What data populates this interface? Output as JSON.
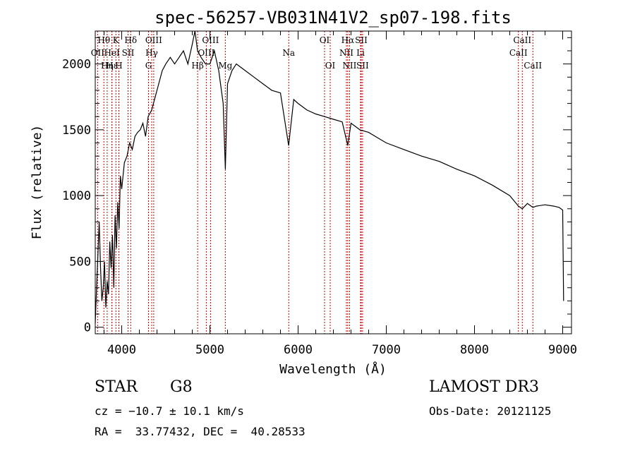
{
  "chart_data": {
    "type": "line",
    "title": "spec-56257-VB031N41V2_sp07-198.fits",
    "xlabel": "Wavelength (Å)",
    "ylabel": "Flux (relative)",
    "xlim": [
      3700,
      9100
    ],
    "ylim": [
      -50,
      2250
    ],
    "xticks": [
      4000,
      5000,
      6000,
      7000,
      8000,
      9000
    ],
    "yticks": [
      0,
      500,
      1000,
      1500,
      2000
    ],
    "tick_labels_x": [
      "4000",
      "5000",
      "6000",
      "7000",
      "8000",
      "9000"
    ],
    "tick_labels_y": [
      "0",
      "500",
      "1000",
      "1500",
      "2000"
    ],
    "series": [
      {
        "name": "flux",
        "x": [
          3700,
          3715,
          3730,
          3745,
          3760,
          3775,
          3790,
          3805,
          3820,
          3835,
          3850,
          3865,
          3880,
          3895,
          3910,
          3925,
          3940,
          3955,
          3970,
          3985,
          4000,
          4030,
          4060,
          4090,
          4120,
          4150,
          4180,
          4210,
          4240,
          4270,
          4300,
          4340,
          4380,
          4420,
          4460,
          4500,
          4550,
          4600,
          4650,
          4700,
          4750,
          4800,
          4830,
          4860,
          4900,
          4950,
          5000,
          5050,
          5100,
          5150,
          5175,
          5200,
          5250,
          5300,
          5400,
          5500,
          5600,
          5700,
          5800,
          5893,
          5950,
          6000,
          6100,
          6200,
          6300,
          6400,
          6500,
          6563,
          6600,
          6700,
          6800,
          6900,
          7000,
          7200,
          7400,
          7600,
          7800,
          8000,
          8200,
          8400,
          8498,
          8542,
          8600,
          8662,
          8700,
          8800,
          8900,
          8960,
          9000,
          9010
        ],
        "y": [
          30,
          300,
          550,
          800,
          450,
          200,
          300,
          500,
          150,
          350,
          250,
          650,
          450,
          700,
          300,
          850,
          600,
          950,
          750,
          1150,
          1050,
          1250,
          1300,
          1400,
          1350,
          1450,
          1480,
          1500,
          1550,
          1450,
          1600,
          1650,
          1750,
          1850,
          1950,
          2000,
          2050,
          2000,
          2050,
          2100,
          2000,
          2150,
          2250,
          2100,
          2050,
          2000,
          2000,
          2100,
          1950,
          1700,
          1200,
          1850,
          1950,
          2000,
          1950,
          1900,
          1850,
          1800,
          1780,
          1380,
          1730,
          1700,
          1650,
          1620,
          1600,
          1580,
          1560,
          1380,
          1550,
          1500,
          1480,
          1440,
          1400,
          1350,
          1300,
          1260,
          1200,
          1150,
          1080,
          1000,
          920,
          900,
          940,
          910,
          920,
          930,
          920,
          910,
          890,
          200
        ]
      }
    ],
    "emission_lines": [
      {
        "label": "OII",
        "wl": 3727,
        "row": 1
      },
      {
        "label": "Hη",
        "wl": 3835,
        "row": 2
      },
      {
        "label": "Hε",
        "wl": 3889,
        "row": 2
      },
      {
        "label": "Hθ",
        "wl": 3798,
        "row": 0
      },
      {
        "label": "HeI",
        "wl": 3889,
        "row": 1
      },
      {
        "label": "SII",
        "wl": 4072,
        "row": 1
      },
      {
        "label": "Hδ",
        "wl": 4102,
        "row": 0
      },
      {
        "label": "Hγ",
        "wl": 4340,
        "row": 1
      },
      {
        "label": "OIII",
        "wl": 4363,
        "row": 0
      },
      {
        "label": "Hβ",
        "wl": 4861,
        "row": 2
      },
      {
        "label": "OIII",
        "wl": 4959,
        "row": 1
      },
      {
        "label": "OIII",
        "wl": 5007,
        "row": 0
      },
      {
        "label": "OI",
        "wl": 6300,
        "row": 0
      },
      {
        "label": "OI",
        "wl": 6364,
        "row": 2
      },
      {
        "label": "NII",
        "wl": 6548,
        "row": 1
      },
      {
        "label": "Hα",
        "wl": 6563,
        "row": 0
      },
      {
        "label": "NII",
        "wl": 6583,
        "row": 2
      },
      {
        "label": "Li",
        "wl": 6708,
        "row": 1
      },
      {
        "label": "SII",
        "wl": 6716,
        "row": 0
      },
      {
        "label": "SII",
        "wl": 6731,
        "row": 2
      }
    ],
    "absorption_lines": [
      {
        "label": "K",
        "wl": 3934,
        "row": 0
      },
      {
        "label": "H",
        "wl": 3968,
        "row": 2
      },
      {
        "label": "G",
        "wl": 4304,
        "row": 2
      },
      {
        "label": "Mg",
        "wl": 5175,
        "row": 2
      },
      {
        "label": "Na",
        "wl": 5894,
        "row": 1
      },
      {
        "label": "CaII",
        "wl": 8498,
        "row": 1
      },
      {
        "label": "CaII",
        "wl": 8542,
        "row": 0
      },
      {
        "label": "CaII",
        "wl": 8662,
        "row": 2
      }
    ],
    "line_color": "#cc0000"
  },
  "info": {
    "class": "STAR",
    "subclass": "G8",
    "cz": "cz = −10.7 ± 10.1 km/s",
    "coords": "RA =  33.77432, DEC =  40.28533",
    "survey": "LAMOST DR3",
    "obs_date": "Obs-Date: 20121125"
  }
}
